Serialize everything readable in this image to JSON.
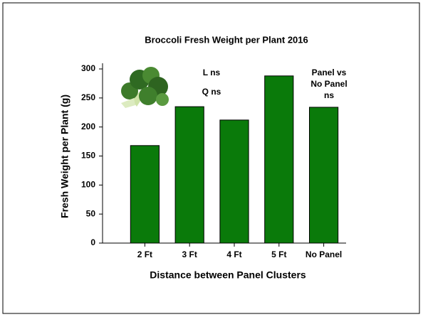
{
  "chart_data": {
    "type": "bar",
    "title": "Broccoli Fresh Weight per Plant 2016",
    "x_label": "Distance between Panel Clusters",
    "y_label": "Fresh Weight per Plant (g)",
    "categories": [
      "2 Ft",
      "3 Ft",
      "4 Ft",
      "5 Ft",
      "No Panel"
    ],
    "values": [
      168,
      235,
      212,
      288,
      234
    ],
    "color": "#0a7a0a",
    "ylim": [
      0,
      300
    ],
    "yticks": [
      0,
      50,
      100,
      150,
      200,
      250,
      300
    ],
    "grid": false,
    "annotations": [
      "L ns",
      "Q ns",
      "Panel vs",
      "No Panel",
      "ns"
    ]
  }
}
